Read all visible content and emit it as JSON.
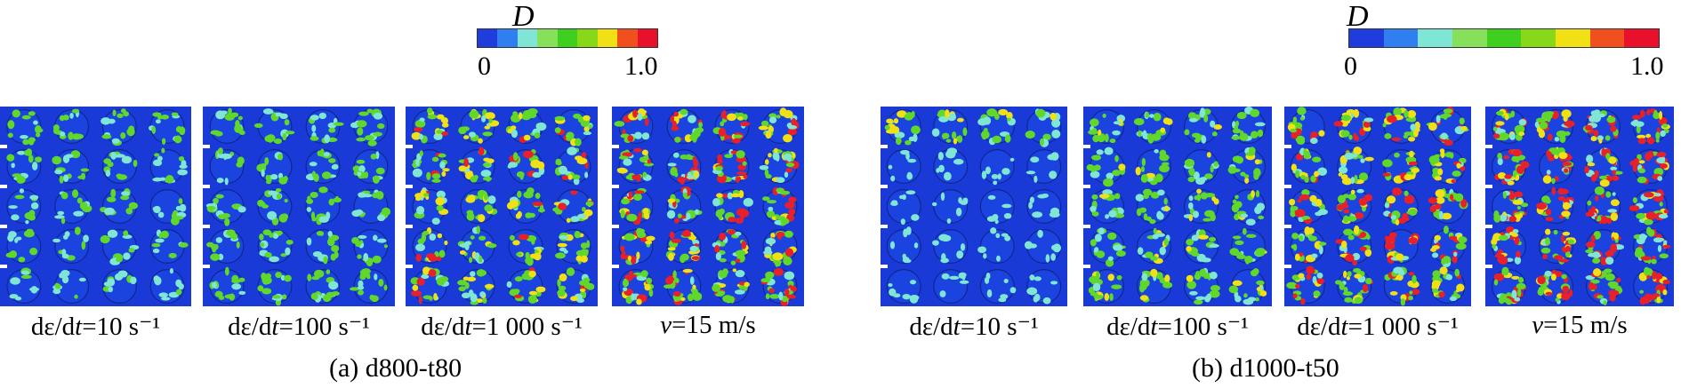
{
  "colorbar": {
    "variable": "D",
    "min_label": "0",
    "max_label": "1.0",
    "colors": [
      "#1e3ddc",
      "#2f7ff0",
      "#7fe6d6",
      "#86e05a",
      "#3fcf1e",
      "#86d818",
      "#f0e014",
      "#f0501e",
      "#e8102a"
    ]
  },
  "groups": [
    {
      "caption": "(a) d800-t80",
      "panels": [
        {
          "pre": "dε/d",
          "var": "t",
          "post": "=10 s⁻¹",
          "damage": 0.25
        },
        {
          "pre": "dε/d",
          "var": "t",
          "post": "=100 s⁻¹",
          "damage": 0.35
        },
        {
          "pre": "dε/d",
          "var": "t",
          "post": "=1 000 s⁻¹",
          "damage": 0.6
        },
        {
          "pre": "",
          "var": "v",
          "post": "=15 m/s",
          "damage": 0.75
        }
      ]
    },
    {
      "caption": "(b) d1000-t50",
      "panels": [
        {
          "pre": "dε/d",
          "var": "t",
          "post": "=10 s⁻¹",
          "damage": 0.15
        },
        {
          "pre": "dε/d",
          "var": "t",
          "post": "=100 s⁻¹",
          "damage": 0.45
        },
        {
          "pre": "dε/d",
          "var": "t",
          "post": "=1 000 s⁻¹",
          "damage": 0.7
        },
        {
          "pre": "",
          "var": "v",
          "post": "=15 m/s",
          "damage": 0.85
        }
      ]
    }
  ]
}
